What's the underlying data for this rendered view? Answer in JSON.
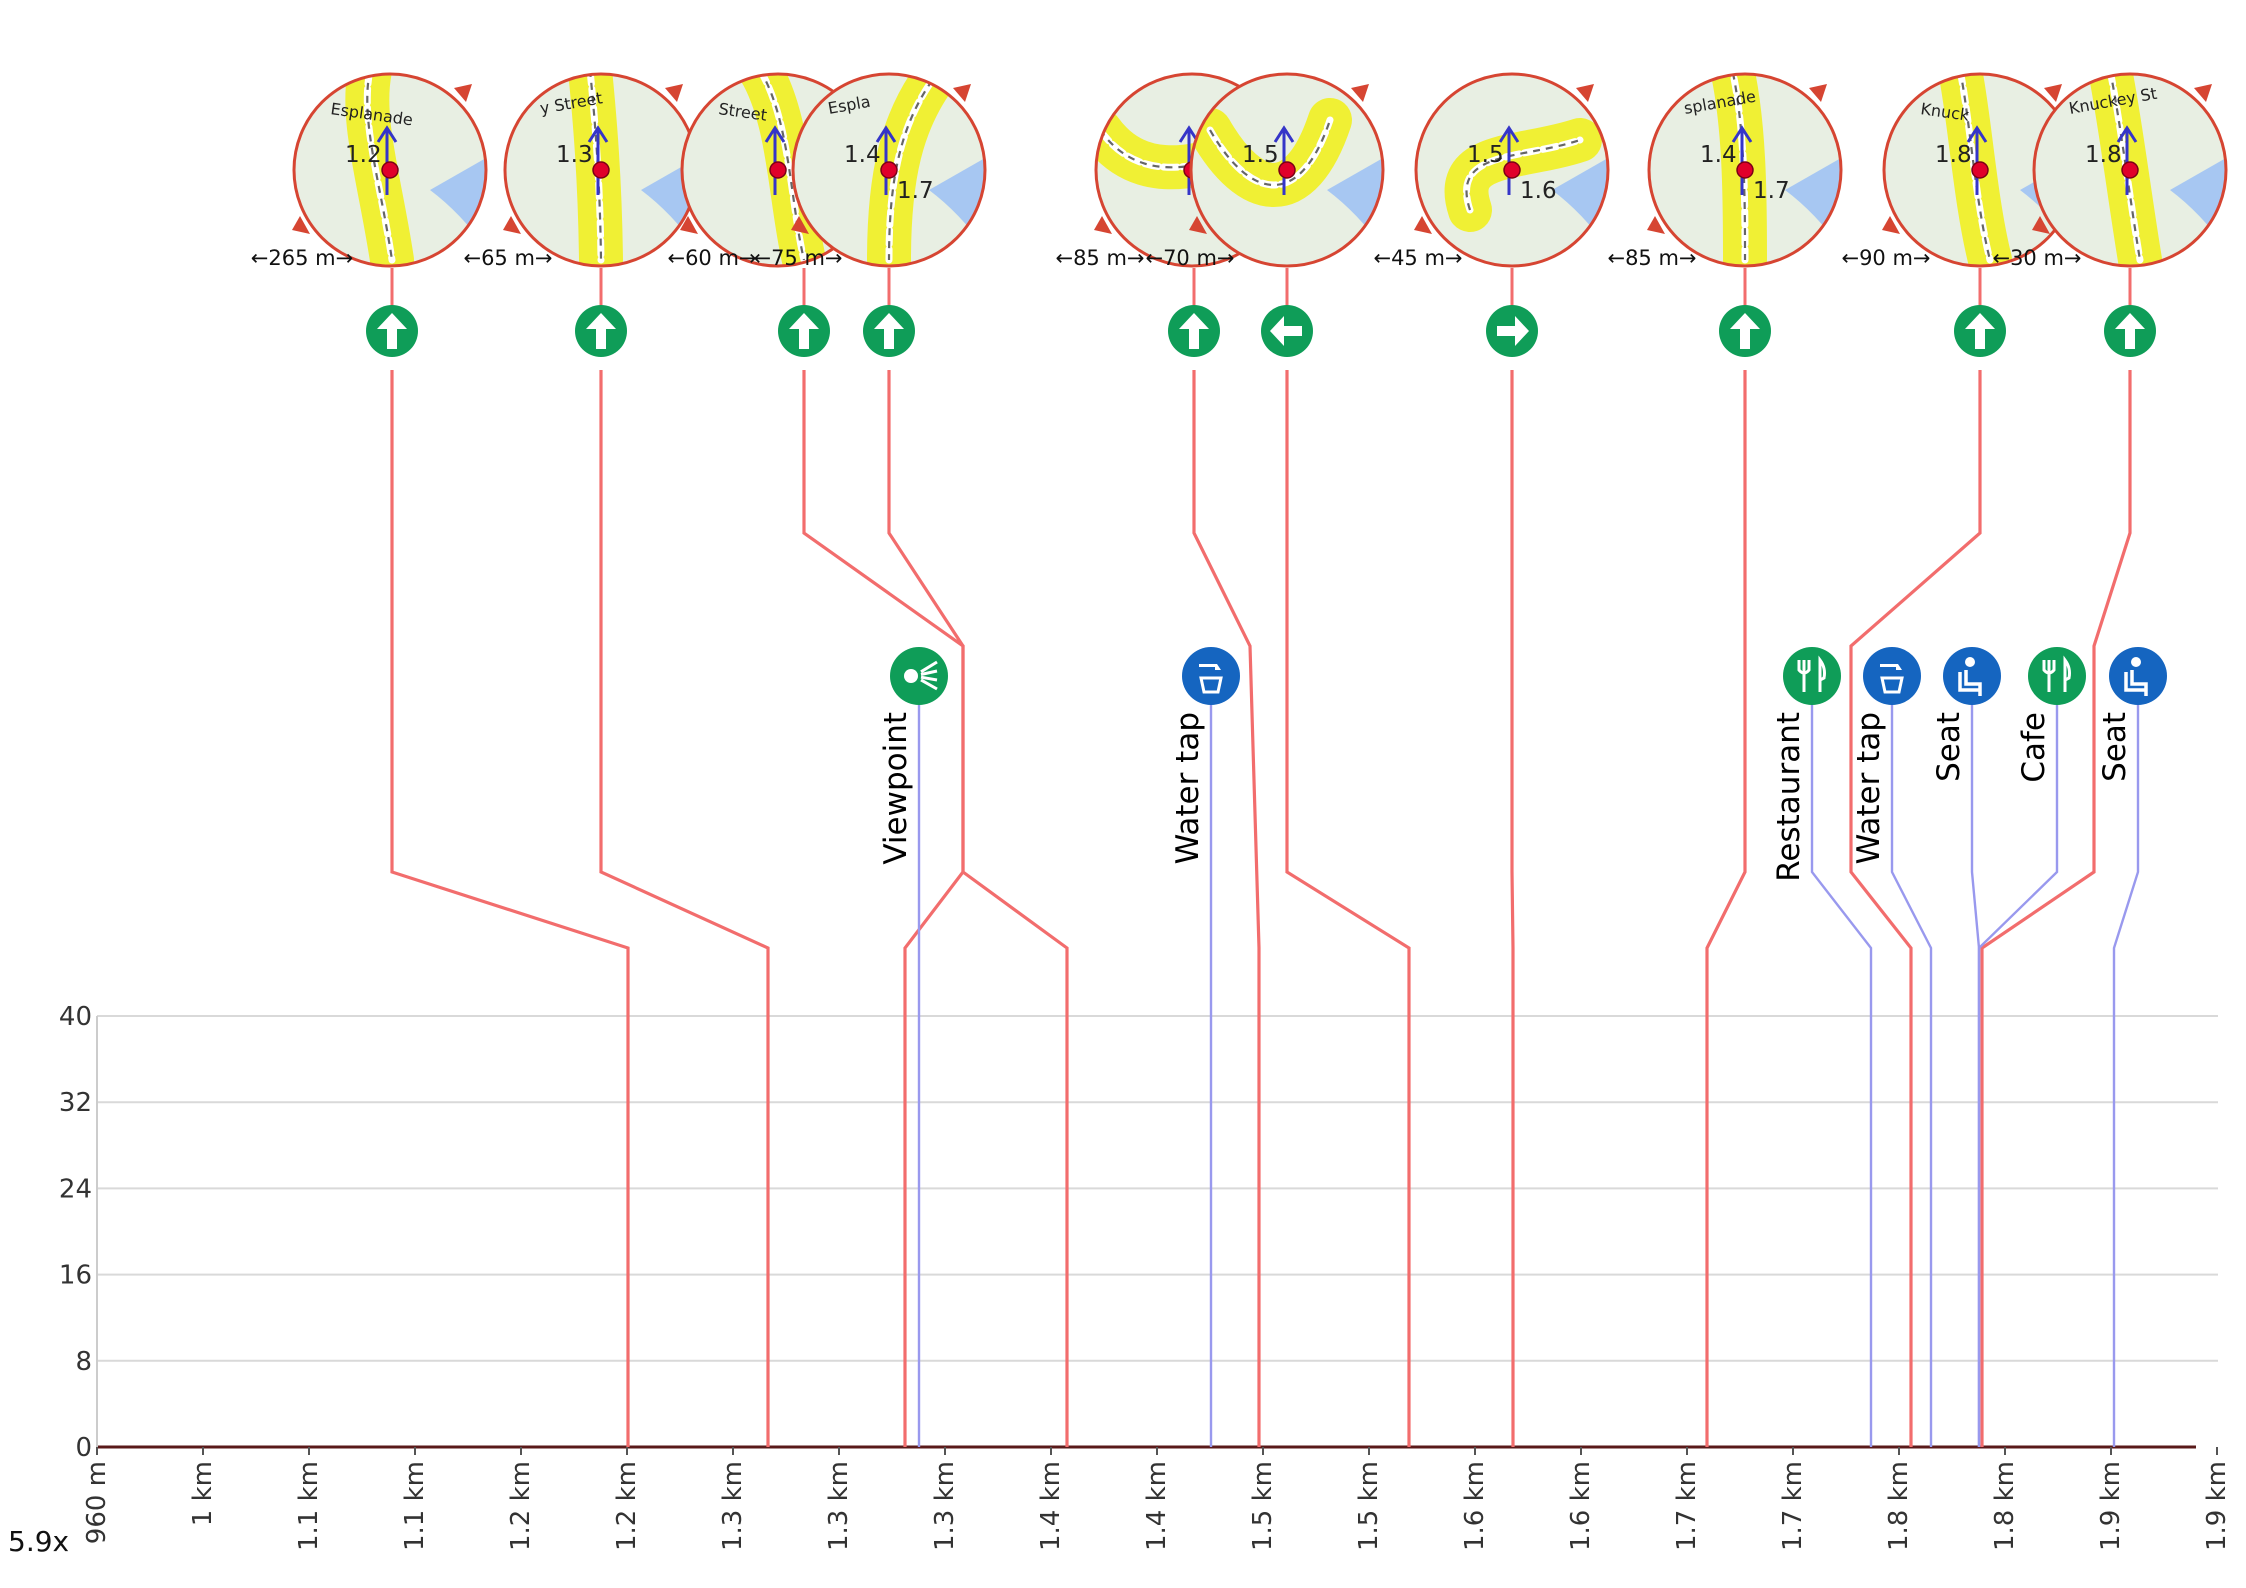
{
  "chart_data": {
    "type": "area",
    "title": "",
    "xlabel": "",
    "ylabel": "",
    "ylim": [
      0,
      40
    ],
    "y_ticks": [
      0,
      8,
      16,
      24,
      32,
      40
    ],
    "x_tick_labels": [
      "960 m",
      "1 km",
      "1.1 km",
      "1.1 km",
      "1.2 km",
      "1.2 km",
      "1.3 km",
      "1.3 km",
      "1.3 km",
      "1.4 km",
      "1.4 km",
      "1.5 km",
      "1.5 km",
      "1.6 km",
      "1.6 km",
      "1.7 km",
      "1.7 km",
      "1.8 km",
      "1.8 km",
      "1.9 km",
      "1.9 km"
    ],
    "grid": true,
    "elevation": {
      "x_km": [
        0.96,
        1.94
      ],
      "y": [
        0,
        0
      ]
    },
    "zoom": "5.9x",
    "turns": [
      {
        "icon": "straight-arrow-icon",
        "distance": "←265 m→",
        "map_labels": [
          "1.2"
        ],
        "street": "Esplanade"
      },
      {
        "icon": "straight-arrow-icon",
        "distance": "←65 m→",
        "map_labels": [
          "1.3"
        ],
        "street": "y Street"
      },
      {
        "icon": "straight-arrow-icon",
        "distance": "←60 m→",
        "map_labels": [],
        "street": "Street"
      },
      {
        "icon": "straight-arrow-icon",
        "distance": "←75 m→",
        "map_labels": [
          "1.4",
          "1.7"
        ],
        "street": "Espla"
      },
      {
        "icon": "straight-arrow-icon",
        "distance": "←85 m→",
        "map_labels": [],
        "street": ""
      },
      {
        "icon": "turn-left-icon",
        "distance": "←70 m→",
        "map_labels": [
          "1.5"
        ],
        "street": ""
      },
      {
        "icon": "turn-right-icon",
        "distance": "←45 m→",
        "map_labels": [
          "1.5",
          "1.6"
        ],
        "street": ""
      },
      {
        "icon": "straight-arrow-icon",
        "distance": "←85 m→",
        "map_labels": [
          "1.4",
          "1.7"
        ],
        "street": "splanade"
      },
      {
        "icon": "straight-arrow-icon",
        "distance": "←90 m→",
        "map_labels": [
          "1.8"
        ],
        "street": "Knuck"
      },
      {
        "icon": "straight-arrow-icon",
        "distance": "←30 m→",
        "map_labels": [
          "1.8"
        ],
        "street": "Knuckey St"
      }
    ],
    "pois": [
      {
        "label": "Viewpoint",
        "icon": "viewpoint-icon",
        "color": "#0f9d58"
      },
      {
        "label": "Water tap",
        "icon": "water-tap-icon",
        "color": "#1565c0"
      },
      {
        "label": "Restaurant",
        "icon": "restaurant-icon",
        "color": "#0f9d58"
      },
      {
        "label": "Water tap",
        "icon": "water-tap-icon",
        "color": "#1565c0"
      },
      {
        "label": "Seat",
        "icon": "seat-icon",
        "color": "#1565c0"
      },
      {
        "label": "Cafe",
        "icon": "cafe-icon",
        "color": "#0f9d58"
      },
      {
        "label": "Seat",
        "icon": "seat-icon",
        "color": "#1565c0"
      }
    ]
  },
  "colors": {
    "turn_line": "#f26d6d",
    "poi_line": "#9999ee",
    "turn_icon": "#0f9d58",
    "map_border": "#d64532",
    "route_highlight": "#f0f034",
    "map_bg": "#e8efe3",
    "water": "#a7c7f2"
  }
}
